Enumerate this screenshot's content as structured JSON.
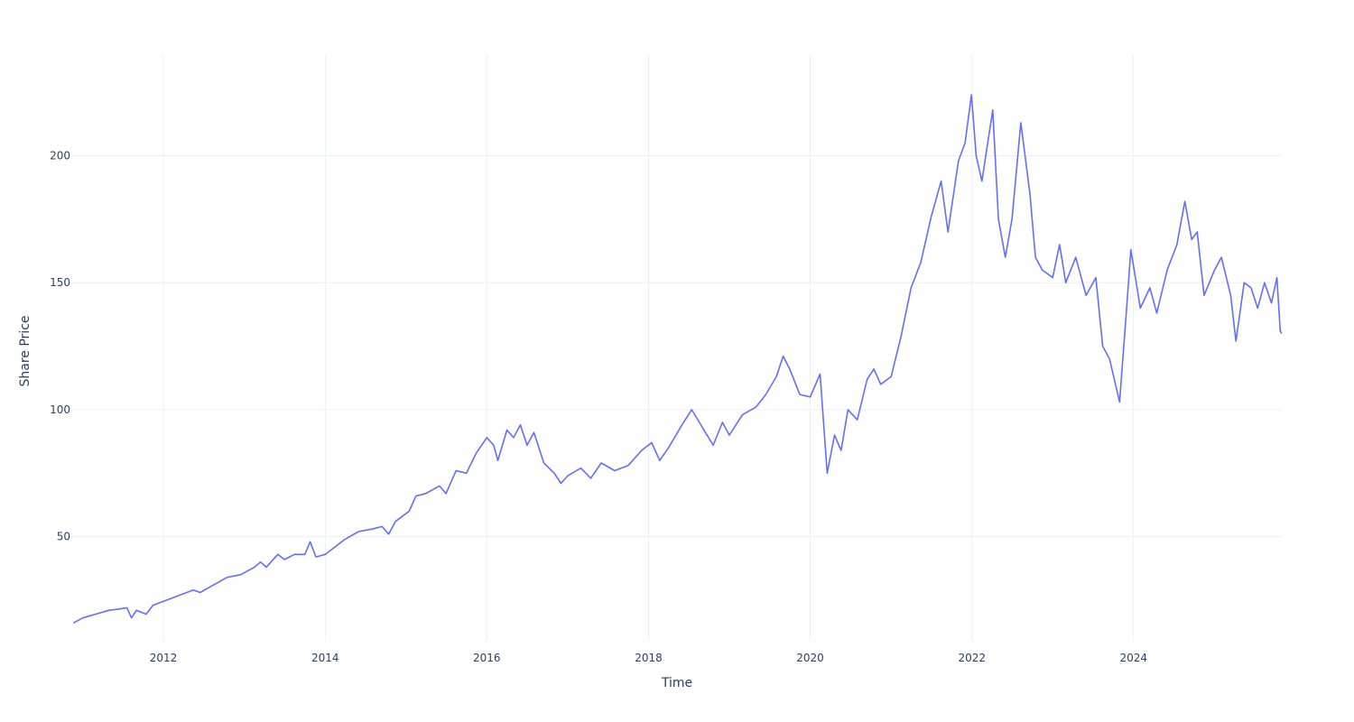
{
  "chart_data": {
    "type": "line",
    "title": "",
    "xlabel": "Time",
    "ylabel": "Share Price",
    "xlim": [
      "2010-11-15",
      "2025-11-01"
    ],
    "ylim": [
      9,
      240
    ],
    "x_ticks": [
      {
        "date": "2012-01-01",
        "label": "2012"
      },
      {
        "date": "2014-01-01",
        "label": "2014"
      },
      {
        "date": "2016-01-01",
        "label": "2016"
      },
      {
        "date": "2018-01-01",
        "label": "2018"
      },
      {
        "date": "2020-01-01",
        "label": "2020"
      },
      {
        "date": "2022-01-01",
        "label": "2022"
      },
      {
        "date": "2024-01-01",
        "label": "2024"
      }
    ],
    "y_ticks": [
      {
        "value": 50,
        "label": "50"
      },
      {
        "value": 100,
        "label": "100"
      },
      {
        "value": 150,
        "label": "150"
      },
      {
        "value": 200,
        "label": "200"
      }
    ],
    "grid": true,
    "legend": "none",
    "series": [
      {
        "color": "#636efa",
        "points": [
          [
            "2010-11-20",
            16
          ],
          [
            "2011-01-01",
            18
          ],
          [
            "2011-03-01",
            19.5
          ],
          [
            "2011-05-01",
            21
          ],
          [
            "2011-06-15",
            21.5
          ],
          [
            "2011-07-20",
            22
          ],
          [
            "2011-08-10",
            18
          ],
          [
            "2011-09-01",
            21
          ],
          [
            "2011-10-15",
            19.5
          ],
          [
            "2011-11-15",
            23
          ],
          [
            "2012-01-15",
            25
          ],
          [
            "2012-03-15",
            27
          ],
          [
            "2012-05-15",
            29
          ],
          [
            "2012-06-15",
            28
          ],
          [
            "2012-08-15",
            31
          ],
          [
            "2012-10-15",
            34
          ],
          [
            "2012-12-15",
            35
          ],
          [
            "2013-02-15",
            38
          ],
          [
            "2013-03-15",
            40
          ],
          [
            "2013-04-10",
            38
          ],
          [
            "2013-06-01",
            43
          ],
          [
            "2013-07-01",
            41
          ],
          [
            "2013-08-15",
            43
          ],
          [
            "2013-10-01",
            43
          ],
          [
            "2013-10-25",
            48
          ],
          [
            "2013-11-20",
            42
          ],
          [
            "2014-01-01",
            43
          ],
          [
            "2014-02-15",
            46
          ],
          [
            "2014-04-01",
            49
          ],
          [
            "2014-06-01",
            52
          ],
          [
            "2014-08-01",
            53
          ],
          [
            "2014-09-15",
            54
          ],
          [
            "2014-10-15",
            51
          ],
          [
            "2014-11-15",
            56
          ],
          [
            "2015-01-15",
            60
          ],
          [
            "2015-02-15",
            66
          ],
          [
            "2015-04-01",
            67
          ],
          [
            "2015-06-01",
            70
          ],
          [
            "2015-07-01",
            67
          ],
          [
            "2015-08-15",
            76
          ],
          [
            "2015-10-01",
            75
          ],
          [
            "2015-11-15",
            83
          ],
          [
            "2016-01-01",
            89
          ],
          [
            "2016-02-01",
            86
          ],
          [
            "2016-02-20",
            80
          ],
          [
            "2016-04-01",
            92
          ],
          [
            "2016-05-01",
            89
          ],
          [
            "2016-06-01",
            94
          ],
          [
            "2016-07-01",
            86
          ],
          [
            "2016-08-01",
            91
          ],
          [
            "2016-09-15",
            79
          ],
          [
            "2016-11-01",
            75
          ],
          [
            "2016-12-01",
            71
          ],
          [
            "2017-01-01",
            74
          ],
          [
            "2017-03-01",
            77
          ],
          [
            "2017-04-15",
            73
          ],
          [
            "2017-06-01",
            79
          ],
          [
            "2017-08-01",
            76
          ],
          [
            "2017-10-01",
            78
          ],
          [
            "2017-12-01",
            84
          ],
          [
            "2018-01-15",
            87
          ],
          [
            "2018-02-20",
            80
          ],
          [
            "2018-04-01",
            85
          ],
          [
            "2018-06-01",
            94
          ],
          [
            "2018-07-15",
            100
          ],
          [
            "2018-09-01",
            93
          ],
          [
            "2018-10-20",
            86
          ],
          [
            "2018-12-01",
            95
          ],
          [
            "2019-01-01",
            90
          ],
          [
            "2019-03-01",
            98
          ],
          [
            "2019-05-01",
            101
          ],
          [
            "2019-06-15",
            106
          ],
          [
            "2019-08-01",
            113
          ],
          [
            "2019-09-01",
            121
          ],
          [
            "2019-10-01",
            116
          ],
          [
            "2019-11-15",
            106
          ],
          [
            "2020-01-01",
            105
          ],
          [
            "2020-02-15",
            114
          ],
          [
            "2020-03-18",
            75
          ],
          [
            "2020-04-20",
            90
          ],
          [
            "2020-05-20",
            84
          ],
          [
            "2020-06-20",
            100
          ],
          [
            "2020-08-01",
            96
          ],
          [
            "2020-09-15",
            112
          ],
          [
            "2020-10-15",
            116
          ],
          [
            "2020-11-15",
            110
          ],
          [
            "2021-01-01",
            113
          ],
          [
            "2021-02-15",
            129
          ],
          [
            "2021-04-01",
            148
          ],
          [
            "2021-05-15",
            158
          ],
          [
            "2021-07-01",
            176
          ],
          [
            "2021-08-15",
            190
          ],
          [
            "2021-09-15",
            170
          ],
          [
            "2021-11-01",
            198
          ],
          [
            "2021-12-01",
            205
          ],
          [
            "2021-12-30",
            224
          ],
          [
            "2022-01-20",
            200
          ],
          [
            "2022-02-15",
            190
          ],
          [
            "2022-03-15",
            206
          ],
          [
            "2022-04-05",
            218
          ],
          [
            "2022-05-01",
            175
          ],
          [
            "2022-06-01",
            160
          ],
          [
            "2022-07-01",
            175
          ],
          [
            "2022-08-10",
            213
          ],
          [
            "2022-09-20",
            185
          ],
          [
            "2022-10-15",
            160
          ],
          [
            "2022-11-15",
            155
          ],
          [
            "2023-01-01",
            152
          ],
          [
            "2023-02-01",
            165
          ],
          [
            "2023-03-01",
            150
          ],
          [
            "2023-04-15",
            160
          ],
          [
            "2023-06-01",
            145
          ],
          [
            "2023-07-15",
            152
          ],
          [
            "2023-08-15",
            125
          ],
          [
            "2023-09-15",
            120
          ],
          [
            "2023-10-30",
            103
          ],
          [
            "2023-12-01",
            140
          ],
          [
            "2023-12-20",
            163
          ],
          [
            "2024-02-01",
            140
          ],
          [
            "2024-03-15",
            148
          ],
          [
            "2024-04-15",
            138
          ],
          [
            "2024-06-01",
            155
          ],
          [
            "2024-07-15",
            165
          ],
          [
            "2024-08-20",
            182
          ],
          [
            "2024-09-20",
            167
          ],
          [
            "2024-10-15",
            170
          ],
          [
            "2024-11-15",
            145
          ],
          [
            "2025-01-01",
            155
          ],
          [
            "2025-02-01",
            160
          ],
          [
            "2025-03-15",
            145
          ],
          [
            "2025-04-08",
            127
          ],
          [
            "2025-05-15",
            150
          ],
          [
            "2025-06-15",
            148
          ],
          [
            "2025-07-15",
            140
          ],
          [
            "2025-08-15",
            150
          ],
          [
            "2025-09-15",
            142
          ],
          [
            "2025-10-10",
            152
          ],
          [
            "2025-10-25",
            131
          ],
          [
            "2025-11-01",
            130
          ]
        ]
      }
    ]
  }
}
